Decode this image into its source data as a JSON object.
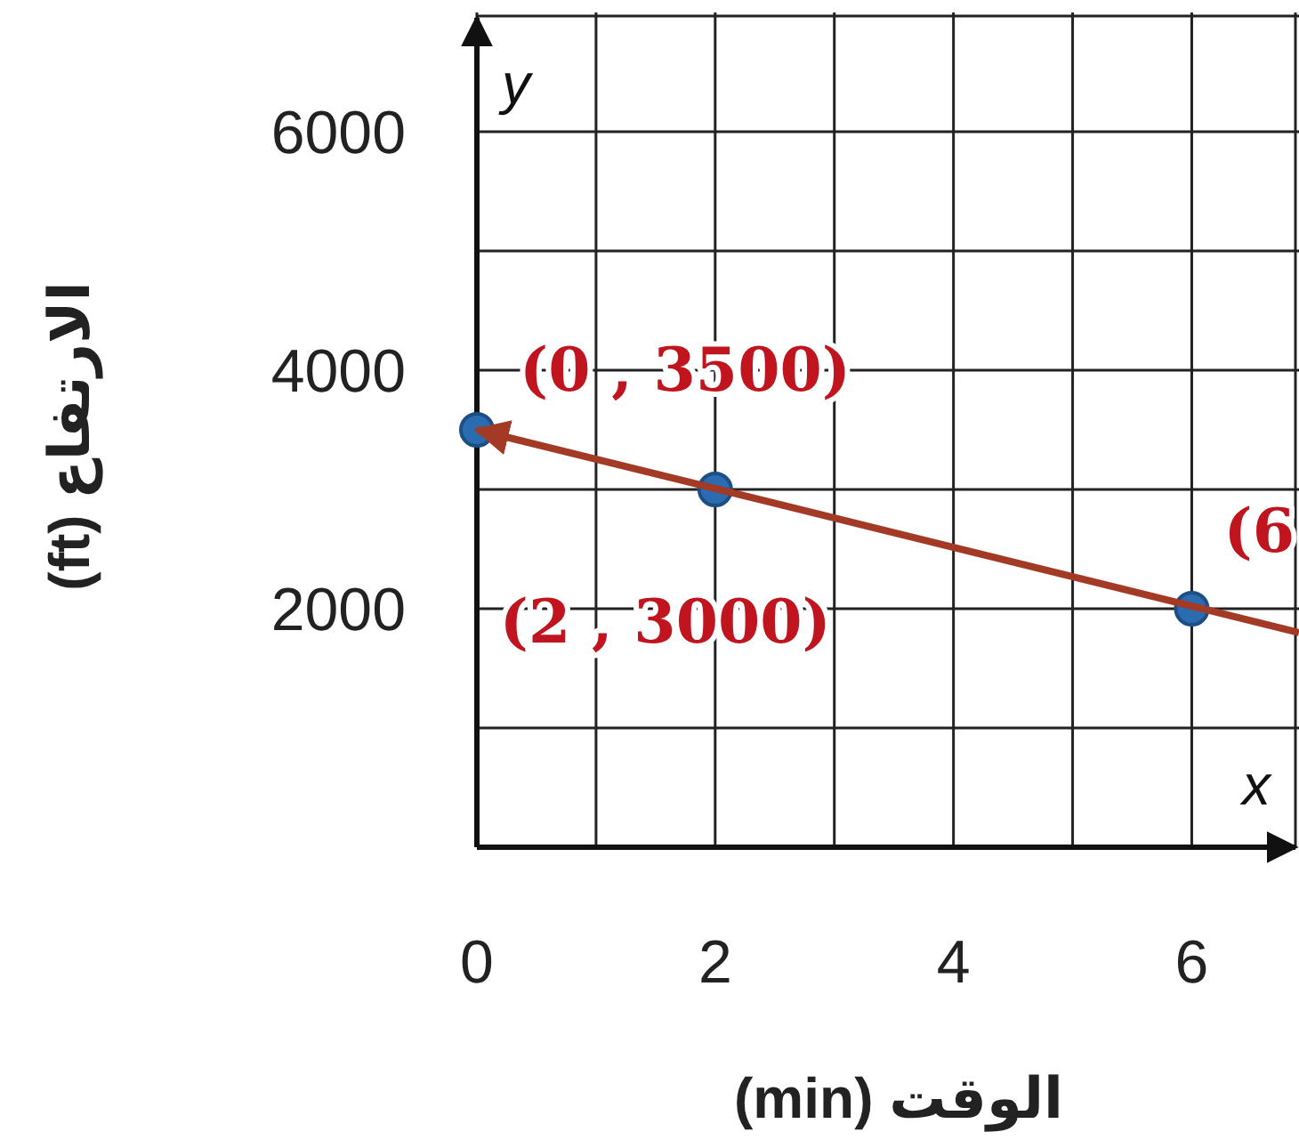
{
  "chart_data": {
    "type": "scatter",
    "xlabel": "الوقت (min)",
    "ylabel": "الارتفاع (ft)",
    "xlim": [
      0,
      6.9
    ],
    "ylim": [
      0,
      7000
    ],
    "xticks": [
      0,
      {
        "value": 1,
        "label": null
      },
      2,
      {
        "value": 3,
        "label": null
      },
      4,
      {
        "value": 5,
        "label": null
      },
      6
    ],
    "yticks": [
      {
        "value": 1000,
        "label": null
      },
      2000,
      {
        "value": 3000,
        "label": null
      },
      4000,
      {
        "value": 5000,
        "label": null
      },
      6000
    ],
    "grid": true,
    "marker": "circle",
    "series": [
      {
        "color": "#2b6cb0",
        "x": [
          0,
          2,
          6
        ],
        "values": [
          3500,
          3000,
          2000
        ]
      },
      {
        "type": "line",
        "marker": "none",
        "color": "#a33a26",
        "x": [
          0,
          6.9
        ],
        "values": [
          3500,
          1800
        ]
      }
    ],
    "annotations": [
      {
        "text": "(0 , 3500)",
        "x": 0,
        "y": 3500
      },
      {
        "text": "(2 , 3000)",
        "x": 2,
        "y": 3000
      },
      {
        "text": "(6",
        "x": 6,
        "y": 2000
      },
      "y",
      "x"
    ]
  }
}
